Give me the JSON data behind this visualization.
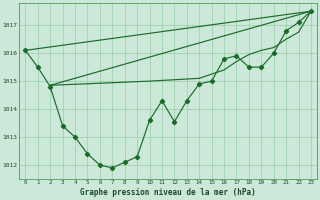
{
  "title": "Graphe pression niveau de la mer (hPa)",
  "bg_color": "#cce8d8",
  "grid_color": "#99ccaa",
  "line_color": "#1a6b2a",
  "xlim": [
    -0.5,
    23.5
  ],
  "ylim": [
    1011.5,
    1017.8
  ],
  "yticks": [
    1012,
    1013,
    1014,
    1015,
    1016,
    1017
  ],
  "xtick_labels": [
    "0",
    "1",
    "2",
    "3",
    "4",
    "5",
    "6",
    "7",
    "8",
    "9",
    "10",
    "11",
    "12",
    "13",
    "14",
    "15",
    "16",
    "17",
    "18",
    "19",
    "20",
    "21",
    "22",
    "23"
  ],
  "line_main": {
    "x": [
      0,
      1,
      2,
      3,
      4,
      5,
      6,
      7,
      8,
      9,
      10,
      11,
      12,
      13,
      14,
      15,
      16,
      17,
      18,
      19,
      20,
      21,
      22,
      23
    ],
    "y": [
      1016.1,
      1015.5,
      1014.8,
      1013.4,
      1013.0,
      1012.4,
      1012.0,
      1011.9,
      1012.1,
      1012.3,
      1013.6,
      1014.3,
      1013.55,
      1014.3,
      1014.9,
      1015.0,
      1015.8,
      1015.9,
      1015.5,
      1015.5,
      1016.0,
      1016.8,
      1017.1,
      1017.5
    ]
  },
  "line_a": {
    "x": [
      0,
      23
    ],
    "y": [
      1016.1,
      1017.5
    ]
  },
  "line_b": {
    "x": [
      2,
      23
    ],
    "y": [
      1014.85,
      1017.5
    ]
  },
  "line_c": {
    "x": [
      2,
      10,
      14,
      16,
      17,
      18,
      19,
      20,
      21,
      22,
      23
    ],
    "y": [
      1014.85,
      1015.0,
      1015.1,
      1015.4,
      1015.7,
      1015.95,
      1016.1,
      1016.2,
      1016.5,
      1016.75,
      1017.5
    ]
  }
}
